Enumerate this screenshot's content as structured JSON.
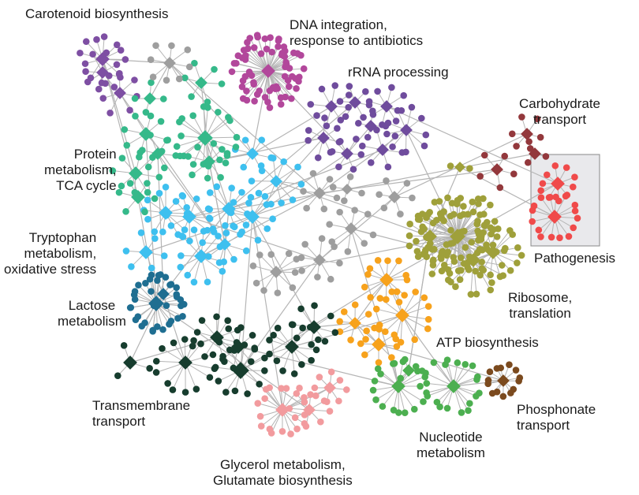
{
  "modules": [
    {
      "label": "Carotenoid biosynthesis",
      "color": "#7e4fa3"
    },
    {
      "label": "DNA integration,\nresponse to antibiotics",
      "color": "#b2479b"
    },
    {
      "label": "rRNA processing",
      "color": "#6f4c9d"
    },
    {
      "label": "Carbohydrate\ntransport",
      "color": "#93383c"
    },
    {
      "label": "Pathogenesis",
      "color": "#f04a4a"
    },
    {
      "label": "Ribosome,\ntranslation",
      "color": "#9fa03a"
    },
    {
      "label": "ATP biosynthesis",
      "color": "#f7a21c"
    },
    {
      "label": "Nucleotide\nmetabolism",
      "color": "#4caf50"
    },
    {
      "label": "Phosphonate\ntransport",
      "color": "#7b4a1e"
    },
    {
      "label": "Glycerol metabolism,\nGlutamate biosynthesis",
      "color": "#f29b9e"
    },
    {
      "label": "Transmembrane\ntransport",
      "color": "#173d2e"
    },
    {
      "label": "Lactose\nmetabolism",
      "color": "#1f6e91"
    },
    {
      "label": "Tryptophan\nmetabolism,\noxidative stress",
      "color": "#3ec0ef"
    },
    {
      "label": "Protein\nmetabolism,\nTCA cycle",
      "color": "#35b98a"
    }
  ],
  "unassigned_color": "#9e9e9e",
  "edge_color": "#b5b5b5",
  "highlight_box_color": "#e9e9ec"
}
